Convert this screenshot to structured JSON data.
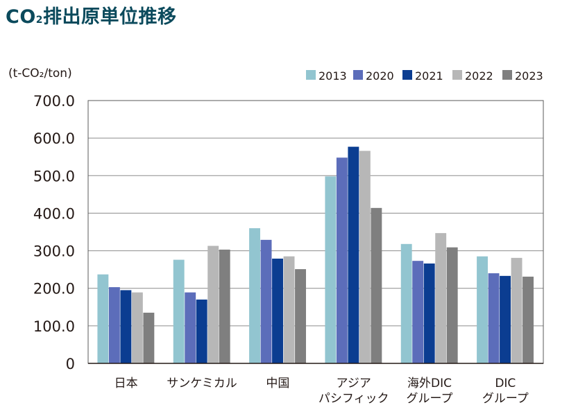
{
  "title": {
    "main_prefix": "CO",
    "subscript": "2",
    "main_suffix": "排出原単位推移"
  },
  "chart_data": {
    "type": "bar",
    "title": "CO₂排出原単位推移",
    "ylabel": "(t-CO₂/ton)",
    "xlabel": "",
    "ylim": [
      0,
      700
    ],
    "yticks": [
      0,
      100,
      200,
      300,
      400,
      500,
      600,
      700
    ],
    "ytick_labels": [
      "0",
      "100.0",
      "200.0",
      "300.0",
      "400.0",
      "500.0",
      "600.0",
      "700.0"
    ],
    "grid": true,
    "legend_position": "top-right",
    "categories": [
      "日本",
      "サンケミカル",
      "中国",
      "アジア\nパシフィック",
      "海外DIC\nグループ",
      "DIC\nグループ"
    ],
    "series": [
      {
        "name": "2013",
        "color": "#92c5d0",
        "values": [
          237,
          276,
          360,
          498,
          318,
          285
        ]
      },
      {
        "name": "2020",
        "color": "#5c6dba",
        "values": [
          203,
          189,
          329,
          548,
          273,
          240
        ]
      },
      {
        "name": "2021",
        "color": "#0b3d91",
        "values": [
          195,
          170,
          279,
          577,
          266,
          233
        ]
      },
      {
        "name": "2022",
        "color": "#b7b7b7",
        "values": [
          189,
          313,
          285,
          566,
          347,
          281
        ]
      },
      {
        "name": "2023",
        "color": "#7f7f7f",
        "values": [
          135,
          303,
          251,
          414,
          309,
          231
        ]
      }
    ]
  }
}
